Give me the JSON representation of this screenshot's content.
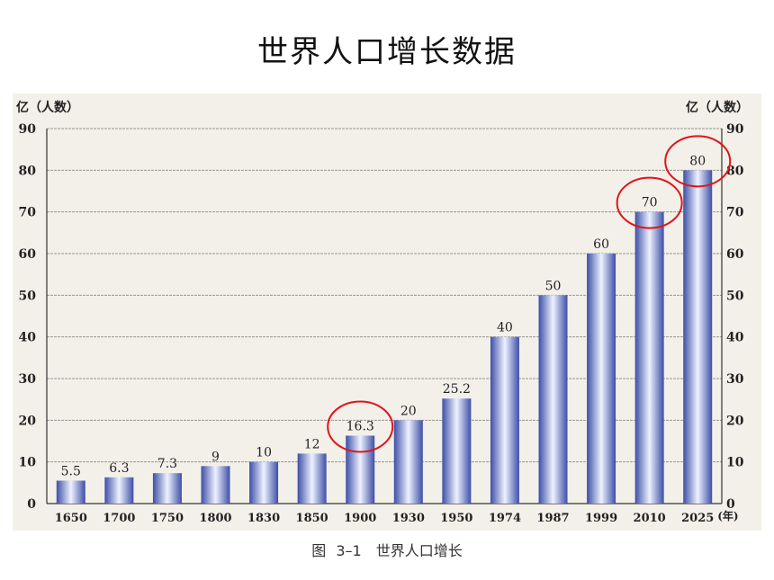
{
  "slide_title": "世界人口增长数据",
  "caption": "图 3–1　世界人口增长",
  "colors": {
    "bar_dark": "#3d4fa6",
    "bar_light": "#eef2ff",
    "highlight_circle": "#e0141b",
    "grid": "#9a968e",
    "axis_text": "#222222",
    "photo_bg": "#f3f0e9"
  },
  "chart_data": {
    "type": "bar",
    "categories": [
      "1650",
      "1700",
      "1750",
      "1800",
      "1830",
      "1850",
      "1900",
      "1930",
      "1950",
      "1974",
      "1987",
      "1999",
      "2010",
      "2025"
    ],
    "values": [
      5.5,
      6.3,
      7.3,
      9,
      10,
      12,
      16.3,
      20,
      25.2,
      40,
      50,
      60,
      70,
      80
    ],
    "labels": [
      "5.5",
      "6.3",
      "7.3",
      "9",
      "10",
      "12",
      "16.3",
      "20",
      "25.2",
      "40",
      "50",
      "60",
      "70",
      "80"
    ],
    "highlighted": [
      "1900",
      "2010",
      "2025"
    ],
    "ylabel_left": "亿（人数）",
    "ylabel_right": "亿（人数）",
    "xunit": "(年)",
    "ylim": [
      0,
      90
    ],
    "yticks": [
      0,
      10,
      20,
      30,
      40,
      50,
      60,
      70,
      80,
      90
    ],
    "grid": true
  }
}
